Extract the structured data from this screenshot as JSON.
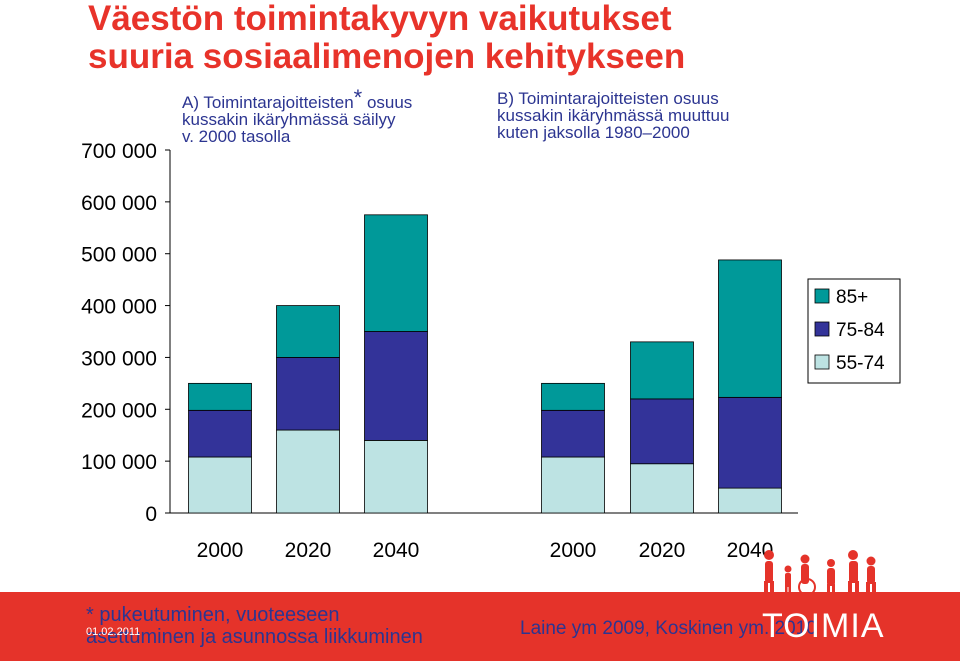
{
  "title_lines": [
    "Väestön toimintakyvyn vaikutukset",
    "suuria sosiaalimenojen kehitykseen"
  ],
  "annotation_a": {
    "lines": [
      "A) Toimintarajoitteisten",
      "kussakin ikäryhmässä säilyy",
      "v. 2000 tasolla"
    ],
    "star": "*",
    "suffix": " osuus"
  },
  "annotation_b": {
    "lines": [
      "B) Toimintarajoitteisten osuus",
      "kussakin ikäryhmässä muuttuu",
      "kuten jaksolla 1980–2000"
    ]
  },
  "chart_data": {
    "type": "bar",
    "stacked": true,
    "groups": [
      "A",
      "B"
    ],
    "categories": [
      "2000",
      "2020",
      "2040",
      "2000",
      "2020",
      "2040"
    ],
    "series": [
      {
        "name": "55-74",
        "color": "#bde3e3",
        "values": [
          108000,
          160000,
          140000,
          108000,
          95000,
          48000
        ]
      },
      {
        "name": "75-84",
        "color": "#333399",
        "values": [
          90000,
          140000,
          210000,
          90000,
          125000,
          175000
        ]
      },
      {
        "name": "85+",
        "color": "#009999",
        "values": [
          52000,
          100000,
          225000,
          52000,
          110000,
          265000
        ]
      }
    ],
    "yticks": [
      "0",
      "100 000",
      "200 000",
      "300 000",
      "400 000",
      "500 000",
      "600 000",
      "700 000"
    ],
    "ylim": [
      0,
      700000
    ],
    "legend_position": "right",
    "grid": false
  },
  "footer": {
    "note_lines": [
      "* pukeutuminen, vuoteeseen",
      "asettuminen ja asunnossa liikkuminen"
    ],
    "date": "01.02.2011",
    "credit": "Laine ym 2009, Koskinen ym. 2010",
    "brand": "TOIMIA",
    "band_color": "#e5332a"
  }
}
